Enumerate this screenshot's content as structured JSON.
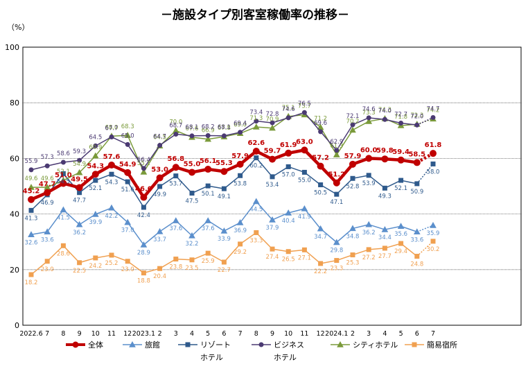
{
  "chart_data": {
    "type": "line",
    "title": "－施設タイプ別客室稼働率の推移－",
    "unit_label": "（%）",
    "ylim": [
      0,
      100
    ],
    "yticks": [
      0,
      20,
      40,
      60,
      80,
      100
    ],
    "grid": true,
    "legend_placement": "bottom",
    "categories": [
      "2022.6",
      "7",
      "8",
      "9",
      "10",
      "11",
      "12",
      "2023.1",
      "2",
      "3",
      "4",
      "5",
      "6",
      "7",
      "8",
      "9",
      "10",
      "11",
      "12",
      "2024.1",
      "2",
      "3",
      "4",
      "5",
      "6",
      "7"
    ],
    "series": [
      {
        "name": "全体",
        "color": "#c00000",
        "marker": "circle",
        "values": [
          45.2,
          47.7,
          51.0,
          49.5,
          54.3,
          57.6,
          54.9,
          46.0,
          53.0,
          56.8,
          55.0,
          56.1,
          55.3,
          57.9,
          62.6,
          59.7,
          61.9,
          63.0,
          57.2,
          51.2,
          57.9,
          60.0,
          59.8,
          59.4,
          58.5,
          61.8
        ]
      },
      {
        "name": "旅館",
        "color": "#5b8fcc",
        "marker": "triangle",
        "values": [
          32.6,
          33.6,
          41.5,
          36.2,
          39.9,
          42.2,
          37.0,
          28.9,
          33.7,
          37.6,
          32.2,
          37.6,
          33.9,
          36.9,
          44.5,
          37.9,
          40.4,
          41.9,
          34.7,
          29.8,
          34.8,
          36.2,
          34.4,
          35.6,
          33.6,
          35.9
        ]
      },
      {
        "name": "リゾートホテル",
        "legend_lines": [
          "リゾート",
          "ホテル"
        ],
        "color": "#2f5a8c",
        "marker": "square",
        "values": [
          41.3,
          46.9,
          54.5,
          47.7,
          52.1,
          54.3,
          51.6,
          42.4,
          49.9,
          53.7,
          47.5,
          50.1,
          49.1,
          53.8,
          60.2,
          53.4,
          57.0,
          55.0,
          50.5,
          47.1,
          52.8,
          53.9,
          49.3,
          52.1,
          50.9,
          58.0
        ]
      },
      {
        "name": "ビジネスホテル",
        "legend_lines": [
          "ビジネス",
          "ホテル"
        ],
        "color": "#4b3a72",
        "marker": "circle",
        "values": [
          55.9,
          57.3,
          58.6,
          59.3,
          64.5,
          67.7,
          65.0,
          56.4,
          64.7,
          68.7,
          68.1,
          68.2,
          68.1,
          69.4,
          73.4,
          72.8,
          74.6,
          76.5,
          69.6,
          62.9,
          72.1,
          74.6,
          74.0,
          72.7,
          72.0,
          74.7
        ]
      },
      {
        "name": "シティホテル",
        "color": "#7a9a3a",
        "marker": "triangle",
        "values": [
          49.6,
          49.6,
          52.1,
          54.9,
          60.9,
          68.0,
          68.3,
          55.1,
          64.5,
          70.0,
          67.6,
          66.9,
          67.8,
          69.0,
          71.3,
          70.9,
          75.1,
          75.7,
          71.2,
          61.3,
          70.2,
          73.3,
          74.3,
          71.8,
          72.3,
          74.2
        ]
      },
      {
        "name": "簡易宿所",
        "color": "#f0a050",
        "marker": "square",
        "values": [
          18.2,
          23.0,
          28.6,
          22.5,
          24.2,
          25.2,
          23.0,
          18.8,
          20.4,
          23.8,
          23.5,
          25.9,
          22.7,
          29.2,
          33.3,
          27.4,
          26.5,
          27.1,
          22.2,
          23.3,
          25.3,
          27.2,
          27.7,
          29.4,
          24.8,
          30.2
        ]
      }
    ]
  }
}
